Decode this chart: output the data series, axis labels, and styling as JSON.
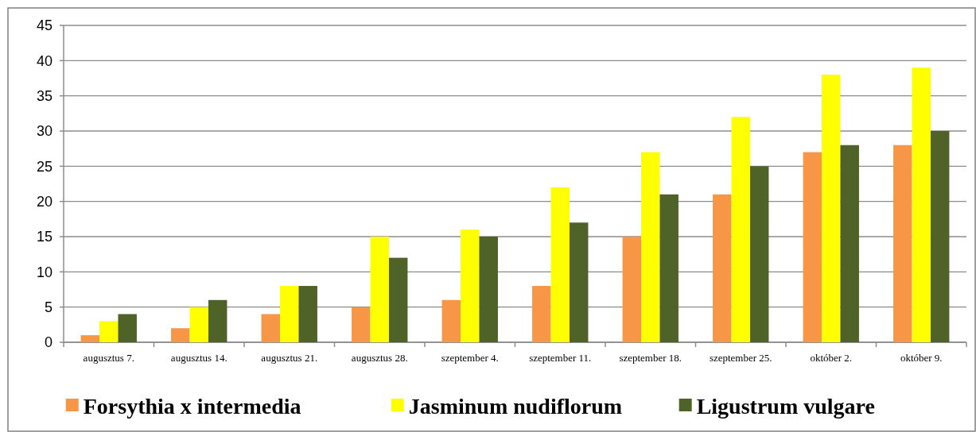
{
  "chart_data": {
    "type": "bar",
    "categories": [
      "augusztus 7.",
      "augusztus 14.",
      "augusztus 21.",
      "augusztus 28.",
      "szeptember 4.",
      "szeptember 11.",
      "szeptember 18.",
      "szeptember 25.",
      "október 2.",
      "október 9."
    ],
    "series": [
      {
        "name": "Forsythia x intermedia",
        "color": "#f79646",
        "values": [
          1,
          2,
          4,
          5,
          6,
          8,
          15,
          21,
          27,
          28
        ]
      },
      {
        "name": "Jasminum nudiflorum",
        "color": "#ffff00",
        "values": [
          3,
          5,
          8,
          15,
          16,
          22,
          27,
          32,
          38,
          39
        ]
      },
      {
        "name": "Ligustrum vulgare",
        "color": "#4f6228",
        "values": [
          4,
          6,
          8,
          12,
          15,
          17,
          21,
          25,
          28,
          30
        ]
      }
    ],
    "ylim": [
      0,
      45
    ],
    "yticks": [
      0,
      5,
      10,
      15,
      20,
      25,
      30,
      35,
      40,
      45
    ],
    "grid": "y",
    "legend": "bottom"
  }
}
